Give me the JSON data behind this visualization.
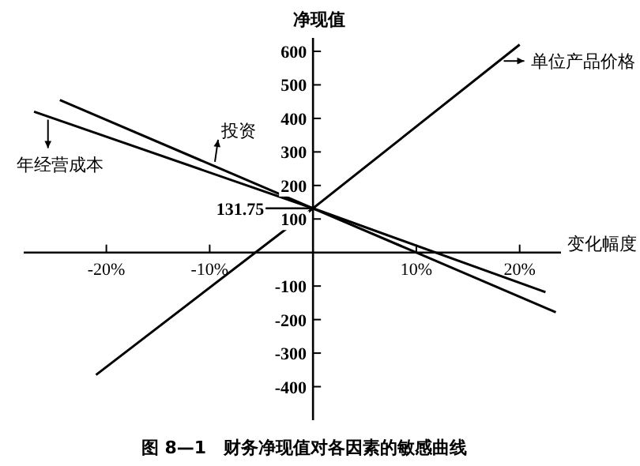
{
  "chart_data": {
    "type": "line",
    "title": "图 8—1　财务净现值对各因素的敏感曲线",
    "xlabel": "变化幅度",
    "ylabel": "净现值",
    "series": [
      {
        "name": "单位产品价格",
        "color": "#000000",
        "x": [
          -21,
          0,
          20
        ],
        "values": [
          -365,
          131.75,
          620
        ]
      },
      {
        "name": "投资",
        "color": "#000000",
        "x": [
          -24.5,
          0,
          23.5
        ],
        "values": [
          455,
          131.75,
          -178
        ]
      },
      {
        "name": "年经营成本",
        "color": "#000000",
        "x": [
          -27,
          0,
          22.5
        ],
        "values": [
          420,
          131.75,
          -118
        ]
      }
    ],
    "annotations": [
      {
        "text": "131.75",
        "x": 0,
        "y": 131.75
      }
    ],
    "xlim": [
      -28,
      24
    ],
    "ylim": [
      -500,
      640
    ],
    "xticks": [
      {
        "value": -20,
        "label": "-20%"
      },
      {
        "value": -10,
        "label": "-10%"
      },
      {
        "value": 10,
        "label": "10%"
      },
      {
        "value": 20,
        "label": "20%"
      }
    ],
    "yticks": [
      -400,
      -300,
      -200,
      -100,
      100,
      200,
      300,
      400,
      500,
      600
    ],
    "grid": false,
    "marker": "none",
    "line_style": "solid"
  }
}
